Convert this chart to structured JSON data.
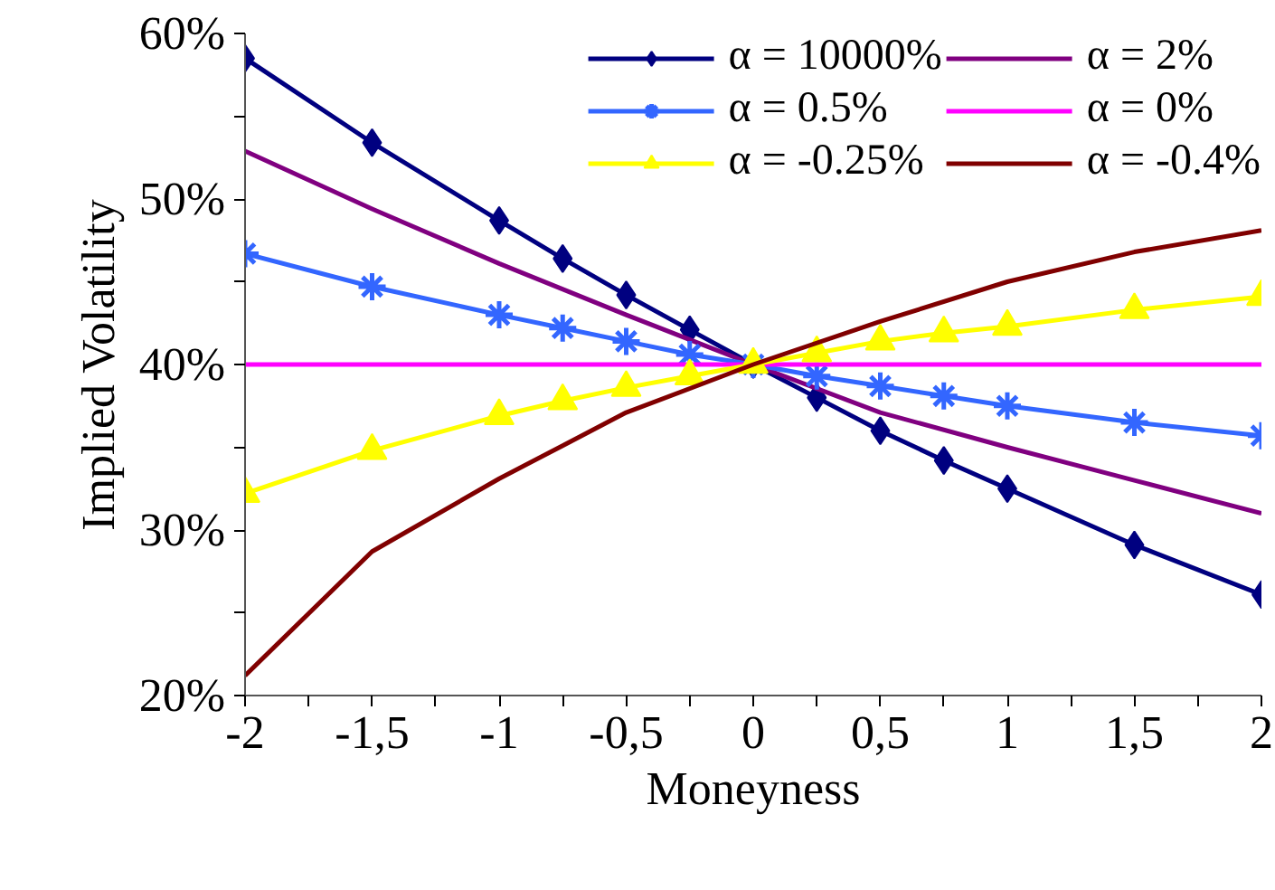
{
  "chart_data": {
    "type": "line",
    "xlabel": "Moneyness",
    "ylabel": "Implied Volatility",
    "xlim": [
      -2,
      2
    ],
    "ylim": [
      20,
      60
    ],
    "xticks": [
      {
        "value": -2,
        "label": "-2"
      },
      {
        "value": -1.75,
        "label": null
      },
      {
        "value": -1.5,
        "label": "-1,5"
      },
      {
        "value": -1.25,
        "label": null
      },
      {
        "value": -1,
        "label": "-1"
      },
      {
        "value": -0.75,
        "label": null
      },
      {
        "value": -0.5,
        "label": "-0,5"
      },
      {
        "value": -0.25,
        "label": null
      },
      {
        "value": 0,
        "label": "0"
      },
      {
        "value": 0.25,
        "label": null
      },
      {
        "value": 0.5,
        "label": "0,5"
      },
      {
        "value": 0.75,
        "label": null
      },
      {
        "value": 1,
        "label": "1"
      },
      {
        "value": 1.25,
        "label": null
      },
      {
        "value": 1.5,
        "label": "1,5"
      },
      {
        "value": 1.75,
        "label": null
      },
      {
        "value": 2,
        "label": "2"
      }
    ],
    "yticks": [
      {
        "value": 20,
        "label": "20%"
      },
      {
        "value": 25,
        "label": null
      },
      {
        "value": 30,
        "label": "30%"
      },
      {
        "value": 35,
        "label": null
      },
      {
        "value": 40,
        "label": "40%"
      },
      {
        "value": 45,
        "label": null
      },
      {
        "value": 50,
        "label": "50%"
      },
      {
        "value": 55,
        "label": null
      },
      {
        "value": 60,
        "label": "60%"
      }
    ],
    "grid": false,
    "legend": "top right",
    "series": [
      {
        "name": "α = 10000%",
        "color": "#000080",
        "marker": "diamond",
        "x": [
          -2,
          -1.5,
          -1,
          -0.75,
          -0.5,
          -0.25,
          0,
          0.25,
          0.5,
          0.75,
          1,
          1.5,
          2
        ],
        "values": [
          58.5,
          53.4,
          48.7,
          46.4,
          44.2,
          42.1,
          40,
          38.0,
          36.0,
          34.2,
          32.5,
          29.1,
          26.1
        ]
      },
      {
        "name": "α = 2%",
        "color": "#800080",
        "marker": "none",
        "x": [
          -2,
          -1.5,
          -1,
          -0.5,
          0,
          0.5,
          1,
          1.5,
          2
        ],
        "values": [
          52.9,
          49.4,
          46.1,
          43.0,
          40,
          37.1,
          35.0,
          33.0,
          31.0
        ]
      },
      {
        "name": "α = 0.5%",
        "color": "#3366ff",
        "marker": "cross",
        "x": [
          -2,
          -1.5,
          -1,
          -0.75,
          -0.5,
          -0.25,
          0,
          0.25,
          0.5,
          0.75,
          1,
          1.5,
          2
        ],
        "values": [
          46.7,
          44.7,
          43.0,
          42.2,
          41.4,
          40.6,
          40,
          39.3,
          38.7,
          38.1,
          37.5,
          36.5,
          35.7
        ]
      },
      {
        "name": "α = 0%",
        "color": "#ff00ff",
        "marker": "none",
        "x": [
          -2,
          2
        ],
        "values": [
          40,
          40
        ]
      },
      {
        "name": "α = -0.25%",
        "color": "#ffff00",
        "marker": "triangle",
        "x": [
          -2,
          -1.5,
          -1,
          -0.75,
          -0.5,
          -0.25,
          0,
          0.25,
          0.5,
          0.75,
          1,
          1.5,
          2
        ],
        "values": [
          32.2,
          34.8,
          36.9,
          37.8,
          38.6,
          39.3,
          40,
          40.7,
          41.4,
          41.9,
          42.3,
          43.3,
          44.1
        ]
      },
      {
        "name": "α = -0.4%",
        "color": "#800000",
        "marker": "none",
        "x": [
          -2,
          -1.5,
          -1,
          -0.75,
          -0.5,
          0,
          0.5,
          1,
          1.5,
          2
        ],
        "values": [
          21.2,
          28.7,
          33.1,
          35.1,
          37.1,
          40,
          42.6,
          45.0,
          46.8,
          48.1
        ]
      }
    ]
  }
}
